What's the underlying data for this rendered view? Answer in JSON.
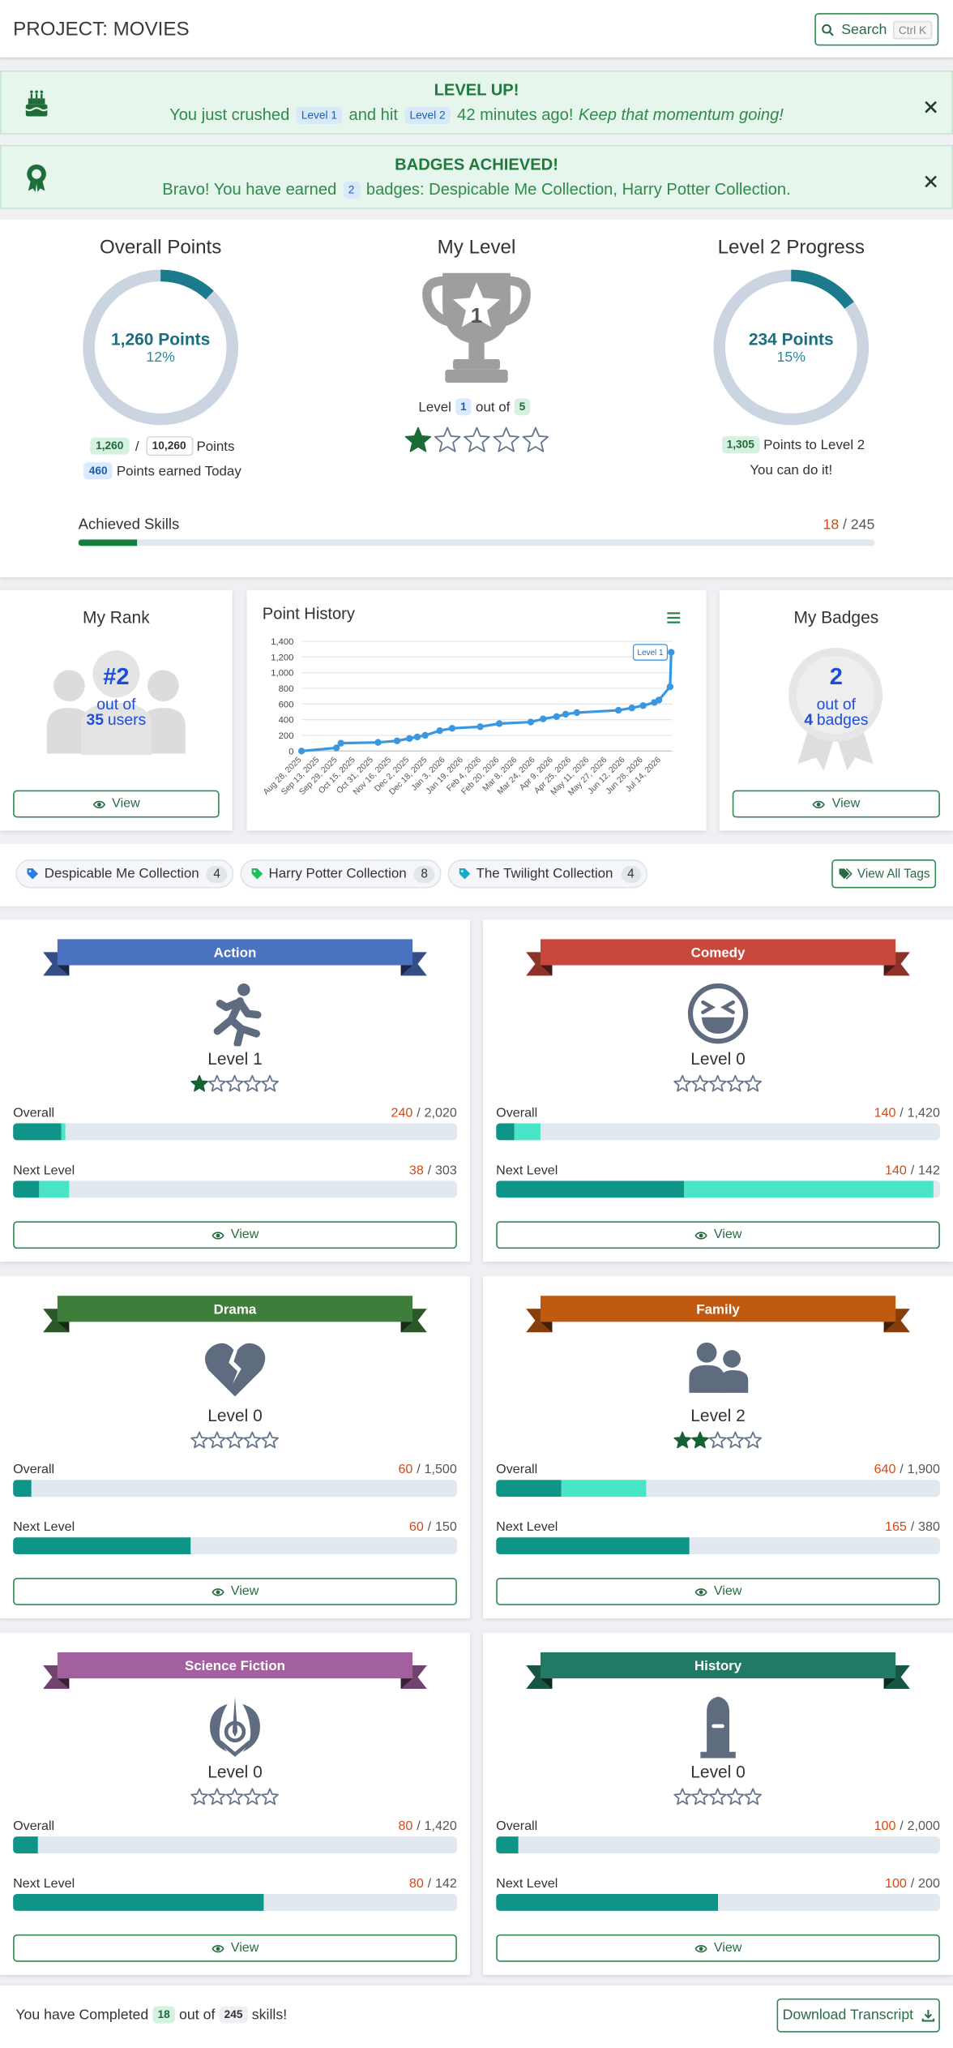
{
  "header": {
    "title": "PROJECT: MOVIES",
    "search": "Search",
    "shortcut": "Ctrl K"
  },
  "sep": "/",
  "alerts": [
    {
      "title": "LEVEL UP!",
      "parts": [
        {
          "text": "You just crushed"
        },
        {
          "text": "Level 1",
          "badge": true
        },
        {
          "text": "and hit"
        },
        {
          "text": "Level 2",
          "badge": true
        },
        {
          "text": "42 minutes ago!"
        },
        {
          "text": "Keep that momentum going!",
          "italic": true
        }
      ]
    },
    {
      "title": "BADGES ACHIEVED!",
      "parts": [
        {
          "text": "Bravo! You have earned"
        },
        {
          "text": "2",
          "badge": true
        },
        {
          "text": "badges: Despicable Me Collection, Harry Potter Collection."
        }
      ]
    }
  ],
  "overall_points": {
    "title": "Overall Points",
    "center": "1,260 Points",
    "percent": 12,
    "percent_label": "12%",
    "earned": "1,260",
    "total": "10,260",
    "unit": "Points",
    "today": "460",
    "today_label": "Points earned Today"
  },
  "my_level": {
    "title": "My Level",
    "level": 1,
    "level_word": "Level",
    "out_of": "out of",
    "max_level": 5
  },
  "level_progress": {
    "title": "Level 2 Progress",
    "center": "234 Points",
    "percent": 15,
    "percent_label": "15%",
    "remaining": "1,305",
    "remaining_label": "Points to Level 2",
    "note": "You can do it!"
  },
  "achieved_skills": {
    "label": "Achieved Skills",
    "done": 18,
    "total": 245
  },
  "my_rank": {
    "title": "My Rank",
    "rank": "#2",
    "out_of": "out of",
    "users": 35,
    "users_word": "users",
    "button": "View"
  },
  "point_history": {
    "type": "line",
    "title": "Point History",
    "color": "#3b98e0",
    "annotation": "Level 1",
    "xlim": [
      "Aug 28, 2025",
      "Jul 24, 2026"
    ],
    "xticks": [
      "Aug 28, 2025",
      "Sep 13, 2025",
      "Sep 29, 2025",
      "Oct 15, 2025",
      "Oct 31, 2025",
      "Nov 16, 2025",
      "Dec 2, 2025",
      "Dec 18, 2025",
      "Jan 3, 2026",
      "Jan 19, 2026",
      "Feb 4, 2026",
      "Feb 20, 2026",
      "Mar 8, 2026",
      "Mar 24, 2026",
      "Apr 9, 2026",
      "Apr 25, 2026",
      "May 11, 2026",
      "May 27, 2026",
      "Jun 12, 2026",
      "Jun 28, 2026",
      "Jul 14, 2026"
    ],
    "x": [
      "Aug 28, 2025",
      "Sep 28, 2025",
      "Oct 2, 2025",
      "Nov 4, 2025",
      "Nov 21, 2025",
      "Dec 2, 2025",
      "Dec 9, 2025",
      "Dec 16, 2025",
      "Dec 29, 2025",
      "Jan 9, 2026",
      "Feb 3, 2026",
      "Feb 20, 2026",
      "Mar 20, 2026",
      "Mar 31, 2026",
      "Apr 12, 2026",
      "Apr 20, 2026",
      "Apr 30, 2026",
      "Jun 6, 2026",
      "Jun 18, 2026",
      "Jun 28, 2026",
      "Jul 8, 2026",
      "Jul 12, 2026",
      "Jul 22, 2026",
      "Jul 23, 2026"
    ],
    "values": [
      0,
      40,
      100,
      110,
      130,
      160,
      180,
      200,
      260,
      290,
      310,
      350,
      370,
      410,
      440,
      470,
      490,
      520,
      550,
      580,
      620,
      650,
      820,
      1260
    ],
    "ylim": [
      0,
      1400
    ],
    "yticks": [
      0,
      200,
      400,
      600,
      800,
      {
        "value": 1000,
        "label": "1,000"
      },
      {
        "value": 1200,
        "label": "1,200"
      },
      {
        "value": 1400,
        "label": "1,400"
      }
    ],
    "grid": true
  },
  "my_badges": {
    "title": "My Badges",
    "count": 2,
    "out_of": "out of",
    "total": 4,
    "total_word": "badges",
    "button": "View"
  },
  "tags": {
    "items": [
      {
        "name": "Despicable Me Collection",
        "count": 4,
        "color": "#2f7de1"
      },
      {
        "name": "Harry Potter Collection",
        "count": 8,
        "color": "#1fbf5a"
      },
      {
        "name": "The Twilight Collection",
        "count": 4,
        "color": "#19a9c9"
      }
    ],
    "button": "View All Tags"
  },
  "subjects": [
    {
      "name": "Action",
      "color": "#4a72c0",
      "level": "Level 1",
      "stars": 1,
      "max_stars": 5,
      "bars": [
        {
          "label": "Overall",
          "value": 240,
          "total": 2020,
          "total_label": "2,020",
          "recent": 20
        },
        {
          "label": "Next Level",
          "value": 38,
          "total": 303,
          "recent": 20
        }
      ],
      "button": "View"
    },
    {
      "name": "Comedy",
      "color": "#c9483e",
      "level": "Level 0",
      "stars": 0,
      "max_stars": 5,
      "bars": [
        {
          "label": "Overall",
          "value": 140,
          "total": 1420,
          "total_label": "1,420",
          "recent": 80
        },
        {
          "label": "Next Level",
          "value": 140,
          "total": 142,
          "recent": 80
        }
      ],
      "button": "View"
    },
    {
      "name": "Drama",
      "color": "#3f7d3a",
      "level": "Level 0",
      "stars": 0,
      "max_stars": 5,
      "bars": [
        {
          "label": "Overall",
          "value": 60,
          "total": 1500,
          "total_label": "1,500",
          "recent": 0
        },
        {
          "label": "Next Level",
          "value": 60,
          "total": 150,
          "recent": 0
        }
      ],
      "button": "View"
    },
    {
      "name": "Family",
      "color": "#c05a10",
      "level": "Level 2",
      "stars": 2,
      "max_stars": 5,
      "bars": [
        {
          "label": "Overall",
          "value": 640,
          "total": 1900,
          "total_label": "1,900",
          "recent": 360
        },
        {
          "label": "Next Level",
          "value": 165,
          "total": 380,
          "recent": 0
        }
      ],
      "button": "View"
    },
    {
      "name": "Science Fiction",
      "color": "#a3609f",
      "level": "Level 0",
      "stars": 0,
      "max_stars": 5,
      "bars": [
        {
          "label": "Overall",
          "value": 80,
          "total": 1420,
          "total_label": "1,420",
          "recent": 0
        },
        {
          "label": "Next Level",
          "value": 80,
          "total": 142,
          "recent": 0
        }
      ],
      "button": "View"
    },
    {
      "name": "History",
      "color": "#227a64",
      "level": "Level 0",
      "stars": 0,
      "max_stars": 5,
      "bars": [
        {
          "label": "Overall",
          "value": 100,
          "total": 2000,
          "total_label": "2,000",
          "recent": 0
        },
        {
          "label": "Next Level",
          "value": 100,
          "total": 200,
          "recent": 0
        }
      ],
      "button": "View"
    }
  ],
  "footer": {
    "before": "You have Completed",
    "done": 18,
    "mid": "out of",
    "total": 245,
    "after": "skills!",
    "button": "Download Transcript"
  }
}
